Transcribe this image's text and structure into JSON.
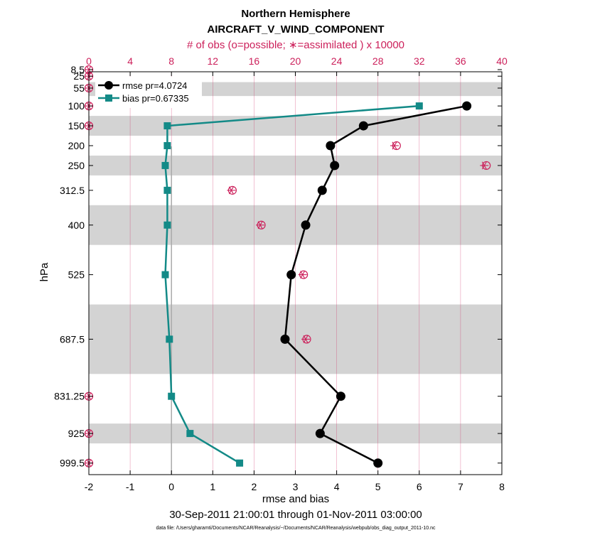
{
  "chart_data": {
    "type": "line",
    "title": "Northern Hemisphere",
    "subtitle": "AIRCRAFT_V_WIND_COMPONENT",
    "top_axis_label": "# of obs (o=possible; ∗=assimilated ) x 10000",
    "xlabel": "rmse and bias",
    "ylabel": "hPa",
    "date_range": "30-Sep-2011 21:00:01 through 01-Nov-2011 03:00:00",
    "footer": "data file: /Users/gharamti/Documents/NCAR/Reanalysis/~/Documents/NCAR/Reanalysis/webpub/obs_diag_output_2011-10.nc",
    "xlim": [
      -2,
      8
    ],
    "top_xlim": [
      0,
      40
    ],
    "x_ticks": [
      -2,
      -1,
      0,
      1,
      2,
      3,
      4,
      5,
      6,
      7,
      8
    ],
    "top_ticks": [
      0,
      4,
      8,
      12,
      16,
      20,
      24,
      28,
      32,
      36,
      40
    ],
    "levels": [
      8.5,
      25,
      55,
      100,
      150,
      200,
      250,
      312.5,
      400,
      525,
      687.5,
      831.25,
      925,
      999.5
    ],
    "level_labels": [
      "8.5",
      "25",
      "55",
      "100",
      "150",
      "200",
      "250",
      "312.5",
      "400",
      "525",
      "687.5",
      "831.25",
      "925",
      "999.5"
    ],
    "shaded_bands": [
      [
        0,
        12
      ],
      [
        40,
        75
      ],
      [
        125,
        175
      ],
      [
        225,
        275
      ],
      [
        350,
        450
      ],
      [
        600,
        775
      ],
      [
        900,
        950
      ]
    ],
    "series": [
      {
        "name": "rmse",
        "legend": "rmse pr=4.0724",
        "color": "#000000",
        "marker": "circle",
        "levels": [
          100,
          150,
          200,
          250,
          312.5,
          400,
          525,
          687.5,
          831.25,
          925,
          999.5
        ],
        "values": [
          7.15,
          4.65,
          3.85,
          3.95,
          3.65,
          3.25,
          2.9,
          2.75,
          4.1,
          3.6,
          5.0
        ]
      },
      {
        "name": "bias",
        "legend": "bias pr=0.67335",
        "color": "#138a87",
        "marker": "square",
        "levels": [
          100,
          150,
          200,
          250,
          312.5,
          400,
          525,
          687.5,
          831.25,
          925,
          999.5
        ],
        "values": [
          6.0,
          -0.1,
          -0.1,
          -0.15,
          -0.1,
          -0.1,
          -0.15,
          -0.05,
          0.0,
          0.45,
          1.65
        ]
      }
    ],
    "obs_possible": {
      "levels": [
        8.5,
        25,
        55,
        100,
        150,
        200,
        250,
        312.5,
        400,
        525,
        687.5,
        831.25,
        925,
        999.5
      ],
      "values": [
        0,
        0,
        0,
        0,
        0,
        29.8,
        38.5,
        13.9,
        16.7,
        20.8,
        21.1,
        0,
        0,
        0
      ]
    },
    "obs_assimilated": {
      "levels": [
        8.5,
        25,
        55,
        100,
        150,
        200,
        250,
        312.5,
        400,
        525,
        687.5,
        831.25,
        925,
        999.5
      ],
      "values": [
        0,
        0,
        0,
        0,
        0,
        29.6,
        38.3,
        13.8,
        16.6,
        20.7,
        21.0,
        0,
        0,
        0
      ]
    },
    "colors": {
      "obs": "#cc1f5a",
      "grid": "#cc1f5a",
      "band": "#d3d3d3",
      "zero_line": "#aaaaaa"
    }
  }
}
